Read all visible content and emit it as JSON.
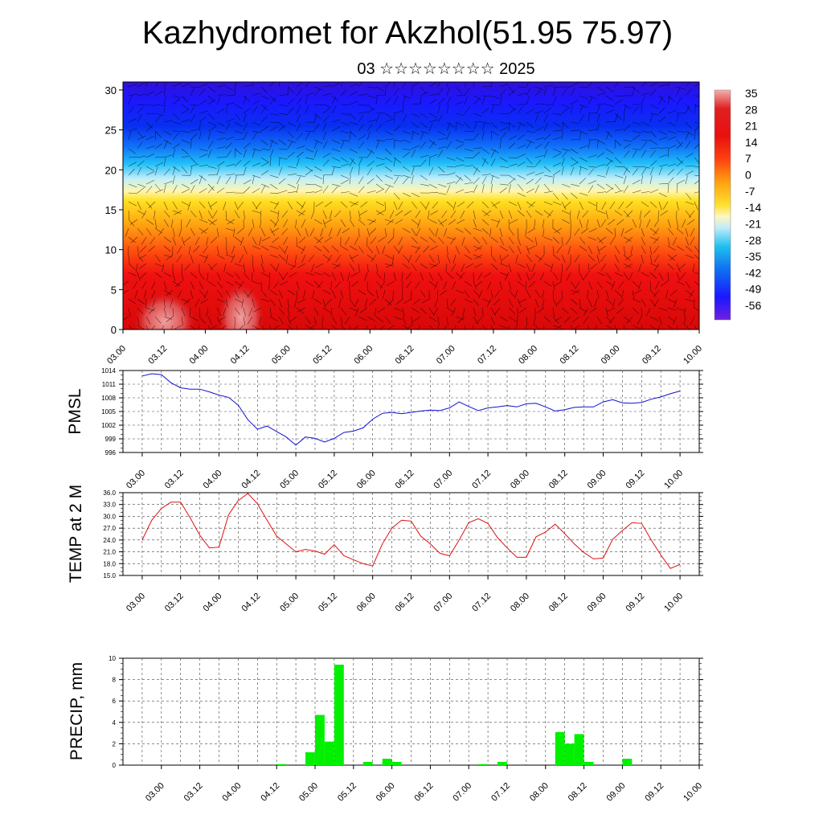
{
  "title": "Kazhydromet for Akzhol(51.95 75.97)",
  "subtitle": "03 ☆☆☆☆☆☆☆☆ 2025",
  "colors": {
    "pmsl_line": "#1010d0",
    "temp_line": "#e01010",
    "precip_bar": "#00f000",
    "grid": "#555555"
  },
  "chart_data": [
    {
      "type": "heatmap",
      "description_source": "vertical cross-section of temperature with wind barbs",
      "x_ticks": [
        "03.00",
        "03.12",
        "04.00",
        "04.12",
        "05.00",
        "05.12",
        "06.00",
        "06.12",
        "07.00",
        "07.12",
        "08.00",
        "08.12",
        "09.00",
        "09.12",
        "10.00"
      ],
      "y_ticks": [
        "0",
        "5",
        "10",
        "15",
        "20",
        "25",
        "30"
      ],
      "ylim": [
        0,
        31
      ],
      "colorbar_labels": [
        "35",
        "28",
        "21",
        "14",
        "7",
        "0",
        "-7",
        "-14",
        "-21",
        "-28",
        "-35",
        "-42",
        "-49",
        "-56"
      ],
      "colorbar_range": [
        -60,
        38
      ]
    },
    {
      "type": "line",
      "ylabel": "PMSL",
      "y_ticks": [
        "1014",
        "1011",
        "1008",
        "1005",
        "1002",
        "999",
        "996"
      ],
      "ylim": [
        996,
        1014
      ],
      "x_ticks": [
        "03.00",
        "03.12",
        "04.00",
        "04.12",
        "05.00",
        "05.12",
        "06.00",
        "06.12",
        "07.00",
        "07.12",
        "08.00",
        "08.12",
        "09.00",
        "09.12",
        "10.00"
      ],
      "x": [
        0,
        3,
        6,
        9,
        12,
        15,
        18,
        21,
        24,
        27,
        30,
        33,
        36,
        39,
        42,
        45,
        48,
        51,
        54,
        57,
        60,
        63,
        66,
        69,
        72,
        75,
        78,
        81,
        84,
        87,
        90,
        93,
        96,
        99,
        102,
        105,
        108,
        111,
        114,
        117,
        120,
        123,
        126,
        129,
        132,
        135,
        138,
        141,
        144,
        147,
        150,
        153,
        156,
        159,
        162,
        165,
        168
      ],
      "values": [
        1012.8,
        1013.3,
        1013.1,
        1011.3,
        1010.2,
        1009.9,
        1009.9,
        1009.3,
        1008.6,
        1008.1,
        1006.4,
        1003.2,
        1001.1,
        1001.8,
        1000.6,
        999.4,
        997.6,
        999.4,
        999.1,
        998.3,
        999.1,
        1000.4,
        1000.7,
        1001.4,
        1003.3,
        1004.6,
        1004.8,
        1004.5,
        1004.8,
        1005.1,
        1005.3,
        1005.2,
        1005.8,
        1007.1,
        1006.1,
        1005.2,
        1005.8,
        1006.0,
        1006.3,
        1006.0,
        1006.7,
        1006.8,
        1006.0,
        1005.1,
        1005.4,
        1005.9,
        1006.0,
        1006.0,
        1007.1,
        1007.6,
        1006.9,
        1006.8,
        1007.0,
        1007.7,
        1008.2,
        1008.9,
        1009.5
      ]
    },
    {
      "type": "line",
      "ylabel": "TEMP at 2 M",
      "y_ticks": [
        "36.0",
        "33.0",
        "30.0",
        "27.0",
        "24.0",
        "21.0",
        "18.0",
        "15.0"
      ],
      "ylim": [
        15,
        36
      ],
      "x_ticks": [
        "03.00",
        "03.12",
        "04.00",
        "04.12",
        "05.00",
        "05.12",
        "06.00",
        "06.12",
        "07.00",
        "07.12",
        "08.00",
        "08.12",
        "09.00",
        "09.12",
        "10.00"
      ],
      "x": [
        0,
        3,
        6,
        9,
        12,
        15,
        18,
        21,
        24,
        27,
        30,
        33,
        36,
        39,
        42,
        45,
        48,
        51,
        54,
        57,
        60,
        63,
        66,
        69,
        72,
        75,
        78,
        81,
        84,
        87,
        90,
        93,
        96,
        99,
        102,
        105,
        108,
        111,
        114,
        117,
        120,
        123,
        126,
        129,
        132,
        135,
        138,
        141,
        144,
        147,
        150,
        153,
        156,
        159,
        162,
        165,
        168
      ],
      "values": [
        24.0,
        29.0,
        32.0,
        33.6,
        33.6,
        29.6,
        25.2,
        22.0,
        22.2,
        30.4,
        34.0,
        35.8,
        33.2,
        29.0,
        25.0,
        23.0,
        21.0,
        21.6,
        21.2,
        20.4,
        22.8,
        20.0,
        19.0,
        18.0,
        17.4,
        23.0,
        27.0,
        29.0,
        28.8,
        25.0,
        23.0,
        20.6,
        20.0,
        24.0,
        28.4,
        29.4,
        28.2,
        24.6,
        22.0,
        19.6,
        19.6,
        24.8,
        26.0,
        28.0,
        25.6,
        23.0,
        20.8,
        19.2,
        19.4,
        24.2,
        26.4,
        28.4,
        28.2,
        24.0,
        20.2,
        16.8,
        17.8
      ]
    },
    {
      "type": "bar",
      "ylabel": "PRECIP, mm",
      "y_ticks": [
        "10",
        "8",
        "6",
        "4",
        "2",
        "0"
      ],
      "ylim": [
        0,
        10
      ],
      "x_ticks": [
        "03.00",
        "03.12",
        "04.00",
        "04.12",
        "05.00",
        "05.12",
        "06.00",
        "06.12",
        "07.00",
        "07.12",
        "08.00",
        "08.12",
        "09.00",
        "09.12",
        "10.00"
      ],
      "bar_width_hours": 3,
      "x": [
        30,
        33,
        36,
        39,
        42,
        45,
        48,
        51,
        54,
        57,
        60,
        63,
        66,
        69,
        72,
        75,
        78,
        81,
        84,
        87,
        90,
        93,
        96,
        99,
        102,
        105,
        108,
        111,
        114,
        117,
        120,
        123,
        126,
        129,
        132,
        135,
        138,
        141,
        144,
        147
      ],
      "values": [
        0,
        0,
        0.1,
        0,
        0,
        1.2,
        4.7,
        2.2,
        9.4,
        0,
        0,
        0.3,
        0,
        0.6,
        0.3,
        0,
        0,
        0,
        0,
        0,
        0,
        0,
        0,
        0.1,
        0,
        0.3,
        0,
        0,
        0,
        0,
        0,
        3.1,
        2.0,
        2.9,
        0.3,
        0,
        0,
        0,
        0.6,
        0
      ]
    }
  ]
}
